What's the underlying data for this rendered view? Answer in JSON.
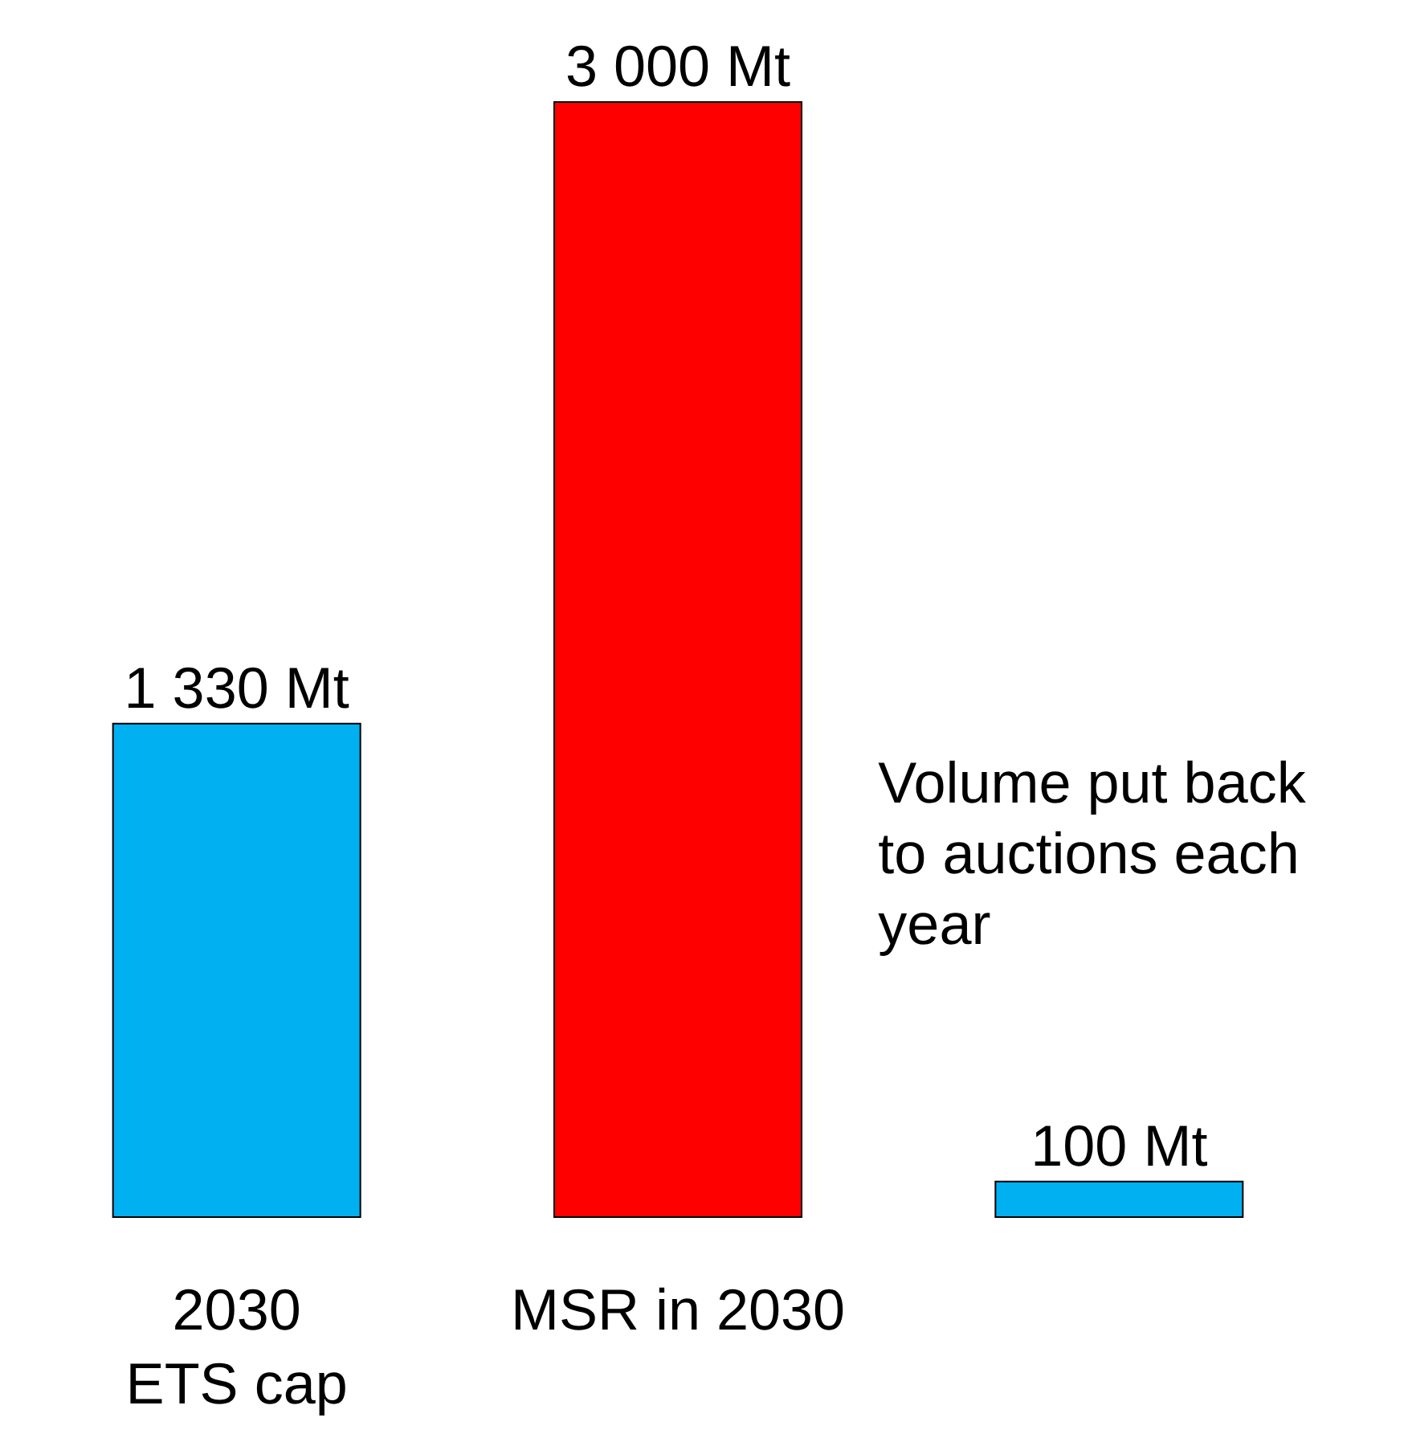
{
  "chart_data": {
    "type": "bar",
    "categories": [
      "2030\nETS cap",
      "MSR in 2030",
      null
    ],
    "values": [
      1330,
      3000,
      100
    ],
    "colors": [
      "#00b0f0",
      "#ff0000",
      "#00b0f0"
    ],
    "value_labels": [
      "1 330 Mt",
      "3 000 Mt",
      "100 Mt"
    ],
    "annotations": [
      "Volume put back to auctions each year"
    ]
  }
}
